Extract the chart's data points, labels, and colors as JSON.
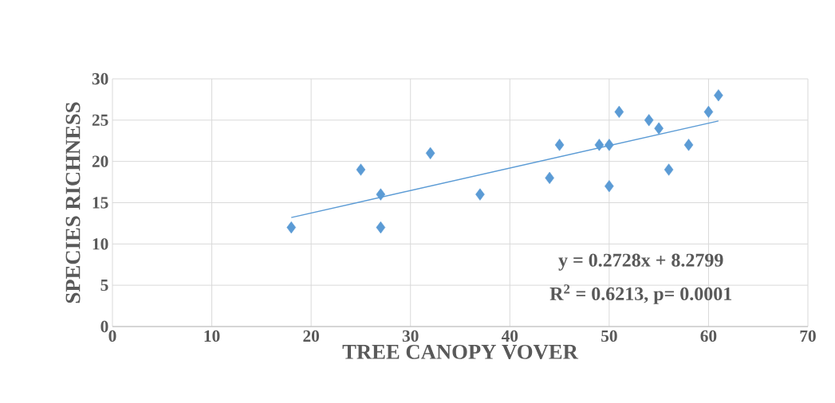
{
  "chart_data": {
    "type": "scatter",
    "xlabel": "TREE CANOPY VOVER",
    "ylabel": "SPECIES RICHNESS",
    "x": [
      18,
      25,
      27,
      27,
      32,
      37,
      44,
      45,
      49,
      50,
      50,
      51,
      54,
      55,
      56,
      58,
      60,
      61
    ],
    "series": [
      {
        "color": "#5b9bd5",
        "marker": "diamond",
        "values": [
          12,
          19,
          16,
          12,
          21,
          16,
          18,
          22,
          22,
          22,
          17,
          26,
          25,
          24,
          19,
          22,
          26,
          28
        ]
      },
      {
        "type": "line",
        "color": "#5b9bd5",
        "marker": "none",
        "line_style": "solid",
        "x": [
          18,
          61
        ],
        "values": [
          13.2,
          24.9
        ]
      }
    ],
    "annotations": [
      "y = 0.2728x + 8.2799",
      "R$^{2}$ = 0.6213, p= 0.0001"
    ],
    "xlim": [
      0,
      70
    ],
    "ylim": [
      0,
      30
    ],
    "xticks": [
      0,
      10,
      20,
      30,
      40,
      50,
      60,
      70
    ],
    "yticks": [
      0,
      5,
      10,
      15,
      20,
      25,
      30
    ],
    "grid": true
  }
}
